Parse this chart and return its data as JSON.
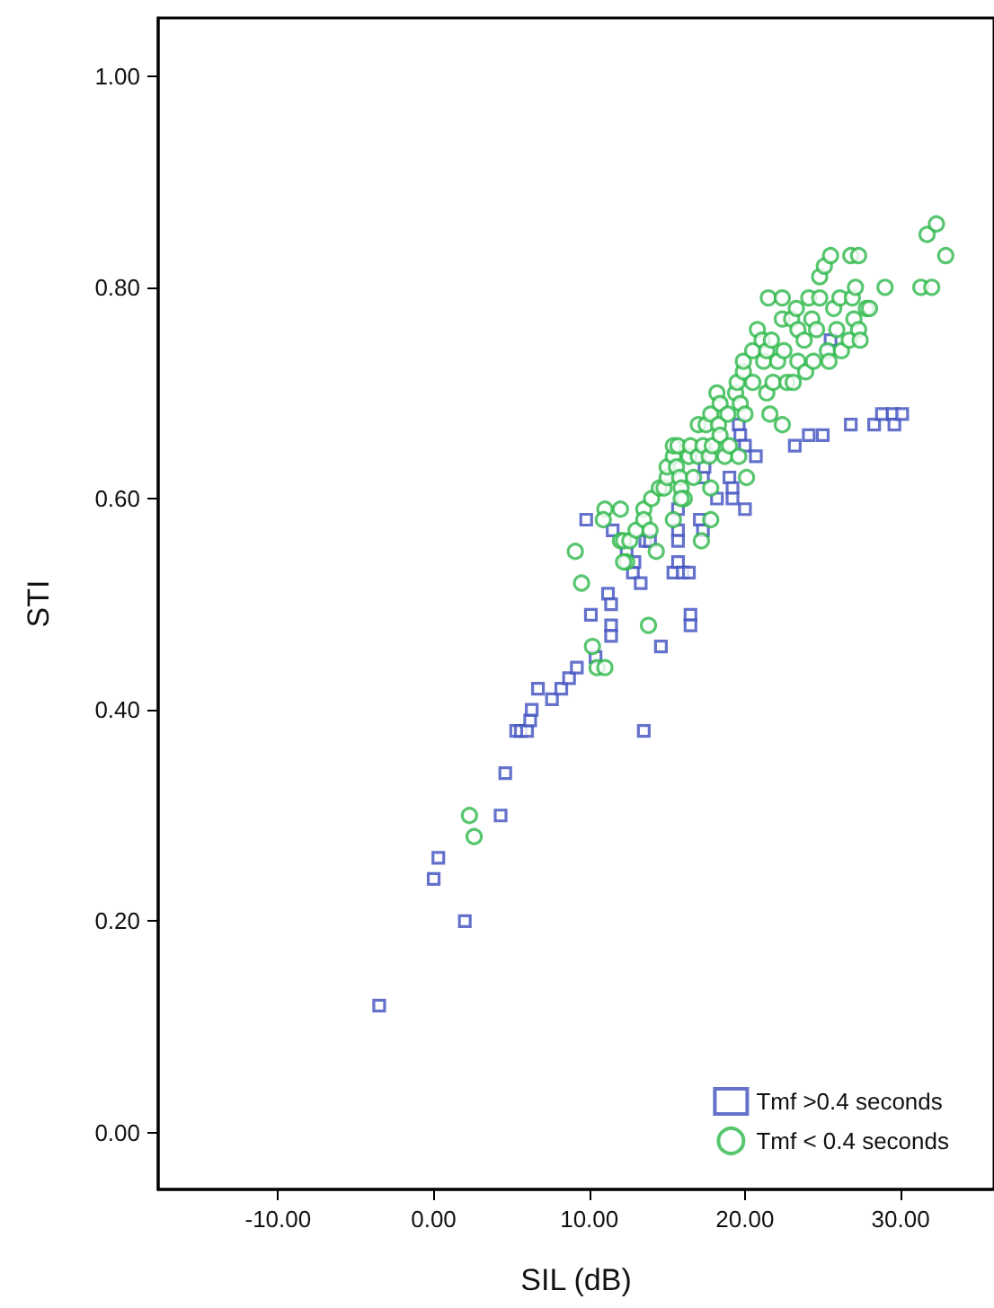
{
  "chart_data": {
    "type": "scatter",
    "xlabel": "SIL (dB)",
    "ylabel": "STI",
    "grid": false,
    "legend": "bottom right",
    "xlim": [
      -17.7,
      36
    ],
    "ylim": [
      -0.054,
      1.055
    ],
    "xticks": [
      {
        "value": -10,
        "label": "-10.00"
      },
      {
        "value": 0,
        "label": "0.00"
      },
      {
        "value": 10,
        "label": "10.00"
      },
      {
        "value": 20,
        "label": "20.00"
      },
      {
        "value": 30,
        "label": "30.00"
      }
    ],
    "yticks": [
      {
        "value": 0,
        "label": "0.00"
      },
      {
        "value": 0.2,
        "label": "0.20"
      },
      {
        "value": 0.4,
        "label": "0.40"
      },
      {
        "value": 0.6,
        "label": "0.60"
      },
      {
        "value": 0.8,
        "label": "0.80"
      },
      {
        "value": 1,
        "label": "1.00"
      }
    ],
    "series": [
      {
        "name": "Tmf >0.4 seconds",
        "color": "#3f4fbf",
        "marker": "square",
        "x": [
          -3.5,
          0,
          0.3,
          2.0,
          4.3,
          4.6,
          5.3,
          5.6,
          6.0,
          6.2,
          6.3,
          6.7,
          7.6,
          8.2,
          8.7,
          9.2,
          9.8,
          10.1,
          10.4,
          11.2,
          11.4,
          11.4,
          11.4,
          11.5,
          12.4,
          12.8,
          12.9,
          13.3,
          13.6,
          13.9,
          13.5,
          14.6,
          15.4,
          15.7,
          15.7,
          15.7,
          15.7,
          16.0,
          16.4,
          16.5,
          16.5,
          17.1,
          17.3,
          17.3,
          17.4,
          18.2,
          19.0,
          19.2,
          19.2,
          19.6,
          19.7,
          20.0,
          20.0,
          20.7,
          23.2,
          24.1,
          25.0,
          25.5,
          26.8,
          28.3,
          28.8,
          29.5,
          29.6,
          30.1
        ],
        "values": [
          0.12,
          0.24,
          0.26,
          0.2,
          0.3,
          0.34,
          0.38,
          0.38,
          0.38,
          0.39,
          0.4,
          0.42,
          0.41,
          0.42,
          0.43,
          0.44,
          0.58,
          0.49,
          0.45,
          0.51,
          0.5,
          0.48,
          0.47,
          0.57,
          0.55,
          0.53,
          0.54,
          0.52,
          0.56,
          0.56,
          0.38,
          0.46,
          0.53,
          0.54,
          0.57,
          0.56,
          0.59,
          0.53,
          0.53,
          0.49,
          0.48,
          0.58,
          0.57,
          0.62,
          0.63,
          0.6,
          0.62,
          0.61,
          0.6,
          0.67,
          0.66,
          0.59,
          0.65,
          0.64,
          0.65,
          0.66,
          0.66,
          0.75,
          0.67,
          0.67,
          0.68,
          0.68,
          0.67,
          0.68
        ]
      },
      {
        "name": "Tmf < 0.4 seconds",
        "color": "#2db84a",
        "marker": "circle",
        "x": [
          2.3,
          2.6,
          9.1,
          9.5,
          10.2,
          10.5,
          11.0,
          11.0,
          10.9,
          12.0,
          12.0,
          12.2,
          12.4,
          12.6,
          12.2,
          13.0,
          13.5,
          13.5,
          13.9,
          14.0,
          14.3,
          13.8,
          14.5,
          14.8,
          15.0,
          15.0,
          15.4,
          15.4,
          15.7,
          15.6,
          15.8,
          15.9,
          16.1,
          15.4,
          15.9,
          16.4,
          16.5,
          16.7,
          17.0,
          17.0,
          17.3,
          17.2,
          17.5,
          17.7,
          17.8,
          17.8,
          17.9,
          17.8,
          18.2,
          18.3,
          18.4,
          18.4,
          18.7,
          18.9,
          19.0,
          19.4,
          19.5,
          19.6,
          19.7,
          19.9,
          19.9,
          20.0,
          20.1,
          20.5,
          20.5,
          20.8,
          21.1,
          21.2,
          21.4,
          21.4,
          21.5,
          21.6,
          21.7,
          21.8,
          22.1,
          22.4,
          22.4,
          22.5,
          22.7,
          23.1,
          22.4,
          23.0,
          23.3,
          23.4,
          23.4,
          23.8,
          23.9,
          24.1,
          24.3,
          24.4,
          24.6,
          24.8,
          24.8,
          25.1,
          25.3,
          25.4,
          25.5,
          25.7,
          25.9,
          26.1,
          26.2,
          26.7,
          26.8,
          26.9,
          27.0,
          27.1,
          27.3,
          27.3,
          27.4,
          27.8,
          28.0,
          29.0,
          31.3,
          31.7,
          32.0,
          32.3,
          32.9
        ],
        "values": [
          0.3,
          0.28,
          0.55,
          0.52,
          0.46,
          0.44,
          0.44,
          0.59,
          0.58,
          0.59,
          0.56,
          0.56,
          0.54,
          0.56,
          0.54,
          0.57,
          0.59,
          0.58,
          0.57,
          0.6,
          0.55,
          0.48,
          0.61,
          0.61,
          0.62,
          0.63,
          0.64,
          0.65,
          0.65,
          0.63,
          0.62,
          0.61,
          0.6,
          0.58,
          0.6,
          0.64,
          0.65,
          0.62,
          0.64,
          0.67,
          0.65,
          0.56,
          0.67,
          0.64,
          0.58,
          0.61,
          0.65,
          0.68,
          0.7,
          0.67,
          0.69,
          0.66,
          0.64,
          0.68,
          0.65,
          0.7,
          0.71,
          0.64,
          0.69,
          0.72,
          0.73,
          0.68,
          0.62,
          0.74,
          0.71,
          0.76,
          0.75,
          0.73,
          0.74,
          0.7,
          0.79,
          0.68,
          0.75,
          0.71,
          0.73,
          0.67,
          0.79,
          0.74,
          0.71,
          0.71,
          0.77,
          0.77,
          0.78,
          0.76,
          0.73,
          0.75,
          0.72,
          0.79,
          0.77,
          0.73,
          0.76,
          0.81,
          0.79,
          0.82,
          0.74,
          0.73,
          0.83,
          0.78,
          0.76,
          0.79,
          0.74,
          0.75,
          0.83,
          0.79,
          0.77,
          0.8,
          0.83,
          0.76,
          0.75,
          0.78,
          0.78,
          0.8,
          0.8,
          0.85,
          0.8,
          0.86,
          0.83
        ]
      }
    ]
  }
}
